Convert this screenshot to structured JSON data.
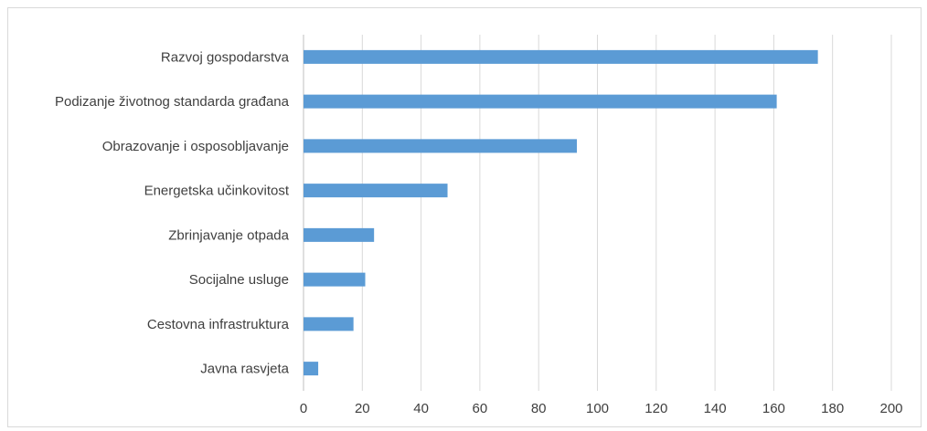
{
  "chart_data": {
    "type": "bar",
    "orientation": "horizontal",
    "categories": [
      "Razvoj gospodarstva",
      "Podizanje životnog standarda građana",
      "Obrazovanje i osposobljavanje",
      "Energetska učinkovitost",
      "Zbrinjavanje otpada",
      "Socijalne usluge",
      "Cestovna infrastruktura",
      "Javna rasvjeta"
    ],
    "values": [
      175,
      161,
      93,
      49,
      24,
      21,
      17,
      5
    ],
    "xlim": [
      0,
      200
    ],
    "ticks": [
      "0",
      "20",
      "40",
      "60",
      "80",
      "100",
      "120",
      "140",
      "160",
      "180",
      "200"
    ],
    "grid": true,
    "legend": "none",
    "title": "",
    "xlabel": "",
    "ylabel": "",
    "colors": {
      "bar": "#5b9bd5"
    }
  }
}
